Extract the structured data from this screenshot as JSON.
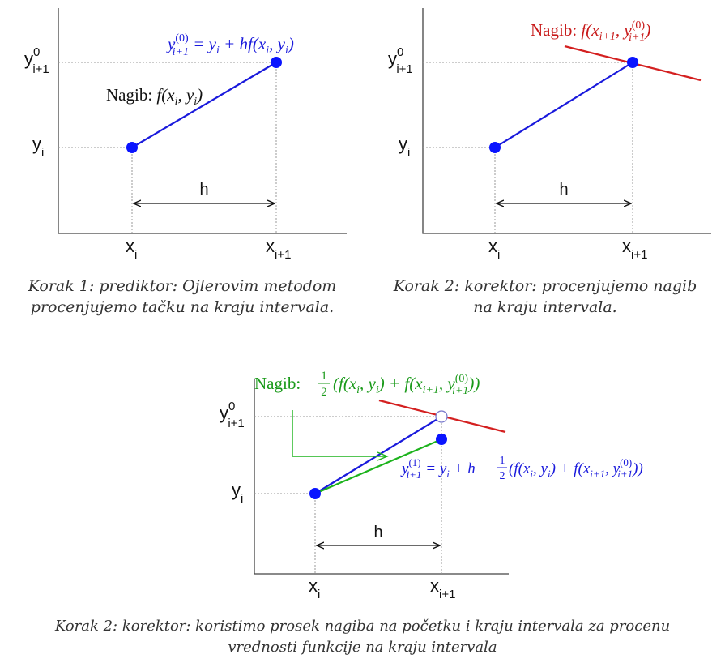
{
  "colors": {
    "axis": "#444444",
    "grid": "#999999",
    "predictor_line": "#1a1adc",
    "point": "#0a14ff",
    "slope_red": "#d42020",
    "slope_green": "#1db31d",
    "text_blue": "#1a1adc",
    "text_red": "#c81a1a",
    "text_green": "#1a9a1a",
    "text_black": "#111111"
  },
  "panel1": {
    "y_next_label": {
      "base": "y",
      "sup": "0",
      "sub": "i+1"
    },
    "y_i_label": {
      "base": "y",
      "sub": "i"
    },
    "x_i_label": {
      "base": "x",
      "sub": "i"
    },
    "x_next_label": {
      "base": "x",
      "sub": "i+1"
    },
    "h_label": "h",
    "formula": {
      "lhs_base": "y",
      "lhs_sup": "(0)",
      "lhs_sub": "i+1",
      "rhs": " = y",
      "rhs_sub": "i",
      "rhs_tail": " + hf(x",
      "rhs_sub2": "i",
      "rhs_mid": ", y",
      "rhs_sub3": "i",
      "rhs_end": ")"
    },
    "slope": {
      "word": "Nagib: ",
      "f": "f(x",
      "sub1": "i",
      "mid": ", y",
      "sub2": "i",
      "end": ")"
    },
    "caption": [
      "Korak 1: prediktor: Ojlerovim metodom",
      "procenjujemo tačku na kraju intervala."
    ]
  },
  "panel2": {
    "y_next_label": {
      "base": "y",
      "sup": "0",
      "sub": "i+1"
    },
    "y_i_label": {
      "base": "y",
      "sub": "i"
    },
    "x_i_label": {
      "base": "x",
      "sub": "i"
    },
    "x_next_label": {
      "base": "x",
      "sub": "i+1"
    },
    "h_label": "h",
    "slope": {
      "word": "Nagib: ",
      "f": "f(x",
      "sub1": "i+1",
      "mid": ", y",
      "sup2": "(0)",
      "sub2": "i+1",
      "end": ")"
    },
    "caption": [
      "Korak 2: korektor: procenjujemo nagib",
      "na kraju intervala."
    ]
  },
  "panel3": {
    "y_next_label": {
      "base": "y",
      "sup": "0",
      "sub": "i+1"
    },
    "y_i_label": {
      "base": "y",
      "sub": "i"
    },
    "x_i_label": {
      "base": "x",
      "sub": "i"
    },
    "x_next_label": {
      "base": "x",
      "sub": "i+1"
    },
    "h_label": "h",
    "slope": {
      "word": "Nagib: ",
      "half_num": "1",
      "half_den": "2",
      "open": "(f(x",
      "sub1": "i",
      "mid1": ", y",
      "sub2": "i",
      "mid2": ") + f(x",
      "sub3": "i+1",
      "mid3": ", y",
      "sup4": "(0)",
      "sub4": "i+1",
      "end": "))"
    },
    "formula": {
      "lhs_base": "y",
      "lhs_sup": "(1)",
      "lhs_sub": "i+1",
      "eq": " = y",
      "sub_a": "i",
      "plus": " + h",
      "half_num": "1",
      "half_den": "2",
      "open": "(f(x",
      "sub1": "i",
      "mid1": ", y",
      "sub2": "i",
      "mid2": ") + f(x",
      "sub3": "i+1",
      "mid3": ", y",
      "sup4": "(0)",
      "sub4": "i+1",
      "end": "))"
    },
    "caption": [
      "Korak 2: korektor: koristimo prosek nagiba na početku i kraju intervala za procenu",
      "vrednosti funkcije na kraju intervala"
    ]
  }
}
